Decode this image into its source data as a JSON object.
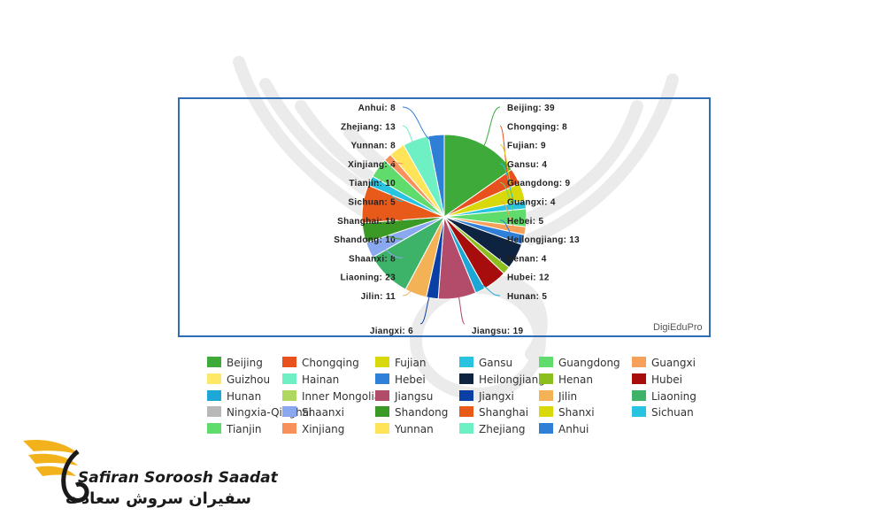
{
  "chart_data": {
    "type": "pie",
    "credit": "DigiEduPro",
    "slices": [
      {
        "label": "Beijing",
        "value": 39,
        "color": "#3daa3a"
      },
      {
        "label": "Chongqing",
        "value": 8,
        "color": "#e8501e"
      },
      {
        "label": "Fujian",
        "value": 9,
        "color": "#d8d80a"
      },
      {
        "label": "Gansu",
        "value": 4,
        "color": "#27c3e0"
      },
      {
        "label": "Guangdong",
        "value": 9,
        "color": "#5fdc6c"
      },
      {
        "label": "Guangxi",
        "value": 4,
        "color": "#f7a05a"
      },
      {
        "label": "Guizhou",
        "value": 0,
        "color": "#ffe868"
      },
      {
        "label": "Hainan",
        "value": 0,
        "color": "#6ff0c4"
      },
      {
        "label": "Hebei",
        "value": 5,
        "color": "#2f80d6"
      },
      {
        "label": "Heilongjiang",
        "value": 13,
        "color": "#0e2340"
      },
      {
        "label": "Henan",
        "value": 4,
        "color": "#8cbf1e"
      },
      {
        "label": "Hubei",
        "value": 12,
        "color": "#a80d0d"
      },
      {
        "label": "Hunan",
        "value": 5,
        "color": "#1da7d6"
      },
      {
        "label": "Inner Mongolia",
        "value": 0,
        "color": "#b0d860"
      },
      {
        "label": "Jiangsu",
        "value": 19,
        "color": "#b34c6a"
      },
      {
        "label": "Jiangxi",
        "value": 6,
        "color": "#0a3fa5"
      },
      {
        "label": "Jilin",
        "value": 11,
        "color": "#f2b255"
      },
      {
        "label": "Liaoning",
        "value": 23,
        "color": "#3db36a"
      },
      {
        "label": "Ningxia-Qinghai",
        "value": 0,
        "color": "#b8b8b8"
      },
      {
        "label": "Shaanxi",
        "value": 8,
        "color": "#8aa8f0"
      },
      {
        "label": "Shandong",
        "value": 10,
        "color": "#3a9a25"
      },
      {
        "label": "Shanghai",
        "value": 19,
        "color": "#e85a1a"
      },
      {
        "label": "Shanxi",
        "value": 0,
        "color": "#d8d80a"
      },
      {
        "label": "Sichuan",
        "value": 5,
        "color": "#27c3e0"
      },
      {
        "label": "Tianjin",
        "value": 10,
        "color": "#5fdc6c"
      },
      {
        "label": "Xinjiang",
        "value": 4,
        "color": "#f7905a"
      },
      {
        "label": "Yunnan",
        "value": 8,
        "color": "#ffe45a"
      },
      {
        "label": "Zhejiang",
        "value": 13,
        "color": "#6ff0c4"
      },
      {
        "label": "Anhui",
        "value": 8,
        "color": "#2f7fd6"
      }
    ],
    "data_labels": [
      {
        "text": "Beijing: 39",
        "side": "right",
        "row": 0
      },
      {
        "text": "Chongqing: 8",
        "side": "right",
        "row": 1
      },
      {
        "text": "Fujian: 9",
        "side": "right",
        "row": 2
      },
      {
        "text": "Gansu: 4",
        "side": "right",
        "row": 3
      },
      {
        "text": "Guangdong: 9",
        "side": "right",
        "row": 4
      },
      {
        "text": "Guangxi: 4",
        "side": "right",
        "row": 5
      },
      {
        "text": "Hebei: 5",
        "side": "right",
        "row": 6
      },
      {
        "text": "Heilongjiang: 13",
        "side": "right",
        "row": 7
      },
      {
        "text": "Henan: 4",
        "side": "right",
        "row": 8
      },
      {
        "text": "Hubei: 12",
        "side": "right",
        "row": 9
      },
      {
        "text": "Hunan: 5",
        "side": "right",
        "row": 10
      },
      {
        "text": "Jiangsu: 19",
        "side": "right",
        "row": 11
      },
      {
        "text": "Anhui: 8",
        "side": "left",
        "row": 0
      },
      {
        "text": "Zhejiang: 13",
        "side": "left",
        "row": 1
      },
      {
        "text": "Yunnan: 8",
        "side": "left",
        "row": 2
      },
      {
        "text": "Xinjiang: 4",
        "side": "left",
        "row": 3
      },
      {
        "text": "Tianjin: 10",
        "side": "left",
        "row": 4
      },
      {
        "text": "Sichuan: 5",
        "side": "left",
        "row": 5
      },
      {
        "text": "Shanghai: 19",
        "side": "left",
        "row": 6
      },
      {
        "text": "Shandong: 10",
        "side": "left",
        "row": 7
      },
      {
        "text": "Shaanxi: 8",
        "side": "left",
        "row": 8
      },
      {
        "text": "Liaoning: 23",
        "side": "left",
        "row": 9
      },
      {
        "text": "Jilin: 11",
        "side": "left",
        "row": 10
      },
      {
        "text": "Jiangxi: 6",
        "side": "left",
        "row": 11
      }
    ],
    "legend_position": "bottom"
  },
  "logo": {
    "text_en": "Safiran Soroosh Saadat",
    "text_fa": "سفیران سروش سعادت",
    "accent_color": "#f2b21c"
  }
}
